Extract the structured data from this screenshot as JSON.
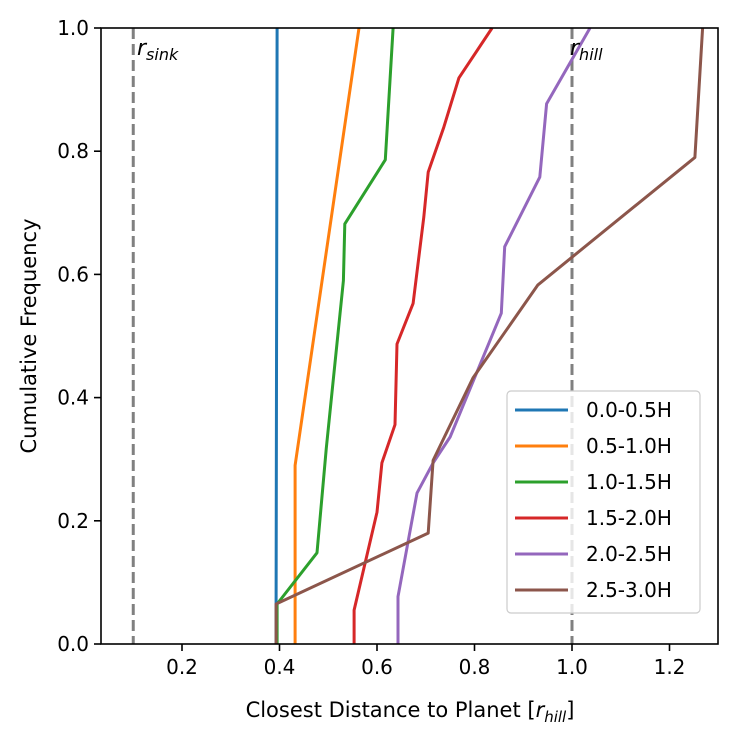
{
  "chart_data": {
    "type": "line",
    "title": "",
    "xlabel": "Closest Distance to Planet [",
    "xlabel_unit": "r",
    "xlabel_unit_sub": "hill",
    "xlabel_close": "]",
    "ylabel": "Cumulative Frequency",
    "xlim": [
      0.034,
      1.3
    ],
    "ylim": [
      0.0,
      1.0
    ],
    "xticks": [
      0.2,
      0.4,
      0.6,
      0.8,
      1.0,
      1.2
    ],
    "xtick_labels": [
      "0.2",
      "0.4",
      "0.6",
      "0.8",
      "1.0",
      "1.2"
    ],
    "yticks": [
      0.0,
      0.2,
      0.4,
      0.6,
      0.8,
      1.0
    ],
    "ytick_labels": [
      "0.0",
      "0.2",
      "0.4",
      "0.6",
      "0.8",
      "1.0"
    ],
    "grid": false,
    "legend_placement": "lower-right",
    "reference_lines": [
      {
        "x": 0.1,
        "label": "r",
        "sub": "sink",
        "color": "#808080"
      },
      {
        "x": 1.0,
        "label": "r",
        "sub": "hill",
        "color": "#808080"
      }
    ],
    "series": [
      {
        "name": "0.0-0.5H",
        "color": "#1f77b4",
        "points": [
          [
            0.393,
            0
          ],
          [
            0.393,
            0.065
          ],
          [
            0.395,
            1.0
          ]
        ]
      },
      {
        "name": "0.5-1.0H",
        "color": "#ff7f0e",
        "points": [
          [
            0.432,
            0
          ],
          [
            0.432,
            0.29
          ],
          [
            0.563,
            1.0
          ]
        ]
      },
      {
        "name": "1.0-1.5H",
        "color": "#2ca02c",
        "points": [
          [
            0.395,
            0
          ],
          [
            0.395,
            0.065
          ],
          [
            0.477,
            0.148
          ],
          [
            0.496,
            0.318
          ],
          [
            0.531,
            0.59
          ],
          [
            0.534,
            0.682
          ],
          [
            0.617,
            0.786
          ],
          [
            0.633,
            1.0
          ]
        ]
      },
      {
        "name": "1.5-2.0H",
        "color": "#d62728",
        "points": [
          [
            0.553,
            0
          ],
          [
            0.553,
            0.055
          ],
          [
            0.6,
            0.214
          ],
          [
            0.61,
            0.294
          ],
          [
            0.637,
            0.356
          ],
          [
            0.641,
            0.487
          ],
          [
            0.674,
            0.553
          ],
          [
            0.696,
            0.693
          ],
          [
            0.705,
            0.766
          ],
          [
            0.737,
            0.839
          ],
          [
            0.768,
            0.919
          ],
          [
            0.836,
            1.0
          ]
        ]
      },
      {
        "name": "2.0-2.5H",
        "color": "#9467bd",
        "points": [
          [
            0.643,
            0
          ],
          [
            0.643,
            0.077
          ],
          [
            0.682,
            0.245
          ],
          [
            0.715,
            0.294
          ],
          [
            0.75,
            0.336
          ],
          [
            0.855,
            0.537
          ],
          [
            0.862,
            0.645
          ],
          [
            0.934,
            0.758
          ],
          [
            0.948,
            0.877
          ],
          [
            1.037,
            1.0
          ]
        ]
      },
      {
        "name": "2.5-3.0H",
        "color": "#8c564b",
        "points": [
          [
            0.393,
            0
          ],
          [
            0.393,
            0.065
          ],
          [
            0.705,
            0.18
          ],
          [
            0.715,
            0.298
          ],
          [
            0.797,
            0.432
          ],
          [
            0.93,
            0.583
          ],
          [
            1.252,
            0.79
          ],
          [
            1.268,
            1.0
          ]
        ]
      }
    ]
  }
}
